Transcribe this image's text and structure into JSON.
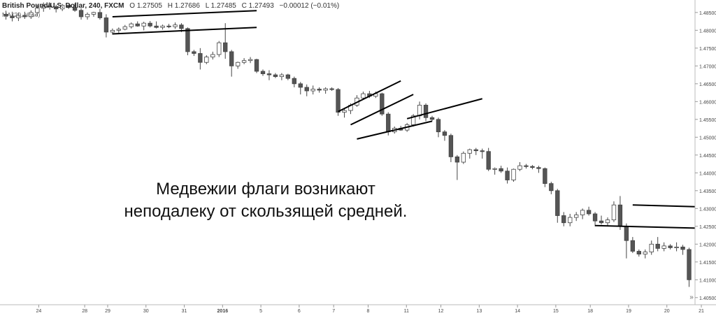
{
  "header": {
    "symbol": "British Pound/U.S. Dollar, 240, FXCM",
    "open": "O 1.27505",
    "high": "H 1.27686",
    "low": "L 1.27485",
    "close": "C 1.27493",
    "change": "−0.00012 (−0.01%)",
    "indicator": "MA (20, close)"
  },
  "caption": {
    "line1": "Медвежии флаги возникают",
    "line2": "неподалеку от скользящей средней."
  },
  "colors": {
    "up_candle": "#ffffff",
    "down_candle": "#555555",
    "flag_line": "#000000",
    "axis_text": "#444444"
  },
  "chart_data": {
    "type": "candlestick",
    "title": "British Pound/U.S. Dollar, 240, FXCM",
    "x_ticks": [
      "24",
      "28",
      "29",
      "30",
      "31",
      "2016",
      "5",
      "6",
      "7",
      "8",
      "11",
      "12",
      "13",
      "14",
      "15",
      "18",
      "19",
      "20",
      "21"
    ],
    "y_ticks": [
      "1.48500",
      "1.48000",
      "1.47500",
      "1.47000",
      "1.46500",
      "1.46000",
      "1.45500",
      "1.45000",
      "1.44500",
      "1.44000",
      "1.43500",
      "1.43000",
      "1.42500",
      "1.42000",
      "1.41500",
      "1.41000",
      "1.40500"
    ],
    "ylim": [
      1.403,
      1.4885
    ],
    "grid": false,
    "ohlc": [
      [
        1.4845,
        1.4855,
        1.483,
        1.484
      ],
      [
        1.484,
        1.4852,
        1.4825,
        1.4835
      ],
      [
        1.4835,
        1.485,
        1.4826,
        1.4842
      ],
      [
        1.4842,
        1.4852,
        1.4832,
        1.4838
      ],
      [
        1.4838,
        1.4856,
        1.4832,
        1.485
      ],
      [
        1.485,
        1.4872,
        1.484,
        1.4862
      ],
      [
        1.4862,
        1.4878,
        1.4852,
        1.4868
      ],
      [
        1.4868,
        1.4875,
        1.4858,
        1.4866
      ],
      [
        1.4866,
        1.4872,
        1.485,
        1.486
      ],
      [
        1.486,
        1.4874,
        1.4854,
        1.487
      ],
      [
        1.487,
        1.4872,
        1.486,
        1.4864
      ],
      [
        1.4864,
        1.4876,
        1.4852,
        1.4856
      ],
      [
        1.4856,
        1.4862,
        1.483,
        1.4838
      ],
      [
        1.4838,
        1.485,
        1.483,
        1.4845
      ],
      [
        1.4845,
        1.4852,
        1.4838,
        1.485
      ],
      [
        1.485,
        1.486,
        1.483,
        1.4835
      ],
      [
        1.4835,
        1.4845,
        1.478,
        1.4795
      ],
      [
        1.4795,
        1.4805,
        1.4788,
        1.48
      ],
      [
        1.48,
        1.4808,
        1.4793,
        1.4803
      ],
      [
        1.4803,
        1.4815,
        1.48,
        1.481
      ],
      [
        1.481,
        1.4822,
        1.4805,
        1.4818
      ],
      [
        1.4818,
        1.4825,
        1.481,
        1.4812
      ],
      [
        1.4812,
        1.4824,
        1.48,
        1.482
      ],
      [
        1.482,
        1.4826,
        1.4808,
        1.4812
      ],
      [
        1.4812,
        1.4825,
        1.4805,
        1.4808
      ],
      [
        1.4808,
        1.4816,
        1.4802,
        1.4812
      ],
      [
        1.4812,
        1.4818,
        1.4806,
        1.481
      ],
      [
        1.481,
        1.4822,
        1.4804,
        1.4815
      ],
      [
        1.4815,
        1.482,
        1.4795,
        1.4805
      ],
      [
        1.4805,
        1.4808,
        1.473,
        1.474
      ],
      [
        1.474,
        1.4745,
        1.4728,
        1.4735
      ],
      [
        1.4735,
        1.475,
        1.469,
        1.471
      ],
      [
        1.471,
        1.473,
        1.4705,
        1.4725
      ],
      [
        1.4725,
        1.474,
        1.4718,
        1.4732
      ],
      [
        1.4732,
        1.477,
        1.4725,
        1.4765
      ],
      [
        1.4765,
        1.482,
        1.472,
        1.474
      ],
      [
        1.474,
        1.4745,
        1.467,
        1.47
      ],
      [
        1.47,
        1.4712,
        1.4692,
        1.471
      ],
      [
        1.471,
        1.4722,
        1.4705,
        1.4715
      ],
      [
        1.4715,
        1.4725,
        1.4708,
        1.4718
      ],
      [
        1.4718,
        1.472,
        1.468,
        1.4685
      ],
      [
        1.4685,
        1.469,
        1.4672,
        1.4678
      ],
      [
        1.4678,
        1.4688,
        1.466,
        1.4675
      ],
      [
        1.4675,
        1.468,
        1.4666,
        1.467
      ],
      [
        1.467,
        1.468,
        1.466,
        1.4675
      ],
      [
        1.4675,
        1.4678,
        1.466,
        1.4665
      ],
      [
        1.4665,
        1.467,
        1.464,
        1.465
      ],
      [
        1.465,
        1.4655,
        1.462,
        1.464
      ],
      [
        1.464,
        1.4648,
        1.4615,
        1.463
      ],
      [
        1.463,
        1.4645,
        1.462,
        1.4635
      ],
      [
        1.4635,
        1.464,
        1.4625,
        1.4632
      ],
      [
        1.4632,
        1.464,
        1.4622,
        1.4636
      ],
      [
        1.4636,
        1.464,
        1.463,
        1.4634
      ],
      [
        1.4634,
        1.4638,
        1.456,
        1.457
      ],
      [
        1.457,
        1.458,
        1.4555,
        1.4575
      ],
      [
        1.4575,
        1.4595,
        1.4565,
        1.459
      ],
      [
        1.459,
        1.4618,
        1.4585,
        1.461
      ],
      [
        1.461,
        1.4628,
        1.4605,
        1.4622
      ],
      [
        1.4622,
        1.463,
        1.461,
        1.4615
      ],
      [
        1.4615,
        1.4628,
        1.461,
        1.4622
      ],
      [
        1.4622,
        1.4625,
        1.456,
        1.4565
      ],
      [
        1.4565,
        1.457,
        1.4505,
        1.4515
      ],
      [
        1.4515,
        1.453,
        1.451,
        1.4525
      ],
      [
        1.4525,
        1.4532,
        1.4518,
        1.452
      ],
      [
        1.452,
        1.454,
        1.4515,
        1.4535
      ],
      [
        1.4535,
        1.4565,
        1.453,
        1.456
      ],
      [
        1.456,
        1.46,
        1.455,
        1.459
      ],
      [
        1.459,
        1.4595,
        1.4545,
        1.4555
      ],
      [
        1.4555,
        1.456,
        1.4545,
        1.455
      ],
      [
        1.455,
        1.4555,
        1.45,
        1.4515
      ],
      [
        1.4515,
        1.452,
        1.449,
        1.4505
      ],
      [
        1.4505,
        1.451,
        1.443,
        1.4445
      ],
      [
        1.4445,
        1.445,
        1.438,
        1.443
      ],
      [
        1.443,
        1.446,
        1.4425,
        1.4455
      ],
      [
        1.4455,
        1.4468,
        1.444,
        1.4465
      ],
      [
        1.4465,
        1.447,
        1.445,
        1.4462
      ],
      [
        1.4462,
        1.4468,
        1.444,
        1.446
      ],
      [
        1.446,
        1.447,
        1.4405,
        1.441
      ],
      [
        1.441,
        1.4415,
        1.4395,
        1.4412
      ],
      [
        1.4412,
        1.442,
        1.44,
        1.4405
      ],
      [
        1.4405,
        1.4415,
        1.437,
        1.438
      ],
      [
        1.438,
        1.4412,
        1.4375,
        1.441
      ],
      [
        1.441,
        1.443,
        1.4405,
        1.442
      ],
      [
        1.442,
        1.4425,
        1.4412,
        1.4418
      ],
      [
        1.4418,
        1.4422,
        1.441,
        1.4415
      ],
      [
        1.4415,
        1.442,
        1.44,
        1.4412
      ],
      [
        1.4412,
        1.4415,
        1.436,
        1.437
      ],
      [
        1.437,
        1.4375,
        1.434,
        1.435
      ],
      [
        1.435,
        1.4355,
        1.426,
        1.428
      ],
      [
        1.428,
        1.429,
        1.425,
        1.426
      ],
      [
        1.426,
        1.4285,
        1.425,
        1.4275
      ],
      [
        1.4275,
        1.429,
        1.4265,
        1.4282
      ],
      [
        1.4282,
        1.43,
        1.427,
        1.4295
      ],
      [
        1.4295,
        1.4305,
        1.428,
        1.4285
      ],
      [
        1.4285,
        1.429,
        1.425,
        1.4265
      ],
      [
        1.4265,
        1.428,
        1.4255,
        1.426
      ],
      [
        1.426,
        1.4275,
        1.425,
        1.4268
      ],
      [
        1.4268,
        1.432,
        1.4262,
        1.431
      ],
      [
        1.431,
        1.4335,
        1.424,
        1.425
      ],
      [
        1.425,
        1.4258,
        1.416,
        1.421
      ],
      [
        1.421,
        1.422,
        1.4175,
        1.418
      ],
      [
        1.418,
        1.4185,
        1.4165,
        1.4172
      ],
      [
        1.4172,
        1.4185,
        1.416,
        1.4178
      ],
      [
        1.4178,
        1.421,
        1.417,
        1.42
      ],
      [
        1.42,
        1.422,
        1.418,
        1.4188
      ],
      [
        1.4188,
        1.4205,
        1.418,
        1.4195
      ],
      [
        1.4195,
        1.42,
        1.4185,
        1.419
      ],
      [
        1.419,
        1.4205,
        1.418,
        1.4192
      ],
      [
        1.4192,
        1.4198,
        1.417,
        1.4185
      ],
      [
        1.4185,
        1.419,
        1.408,
        1.41
      ]
    ],
    "flag_lines": [
      [
        [
          0,
          1.4838
        ],
        [
          23,
          1.4855
        ]
      ],
      [
        [
          0,
          1.479
        ],
        [
          23,
          1.4808
        ]
      ],
      [
        [
          0,
          1.4572
        ],
        [
          10,
          1.4658
        ]
      ],
      [
        [
          2,
          1.4535
        ],
        [
          12,
          1.462
        ]
      ],
      [
        [
          11,
          1.4552
        ],
        [
          23,
          1.4608
        ]
      ],
      [
        [
          3,
          1.4495
        ],
        [
          15,
          1.4545
        ]
      ],
      [
        [
          83,
          1.431
        ],
        [
          93,
          1.4305
        ]
      ],
      [
        [
          77,
          1.4252
        ],
        [
          93,
          1.4245
        ]
      ]
    ],
    "watermark": "tradingview"
  }
}
